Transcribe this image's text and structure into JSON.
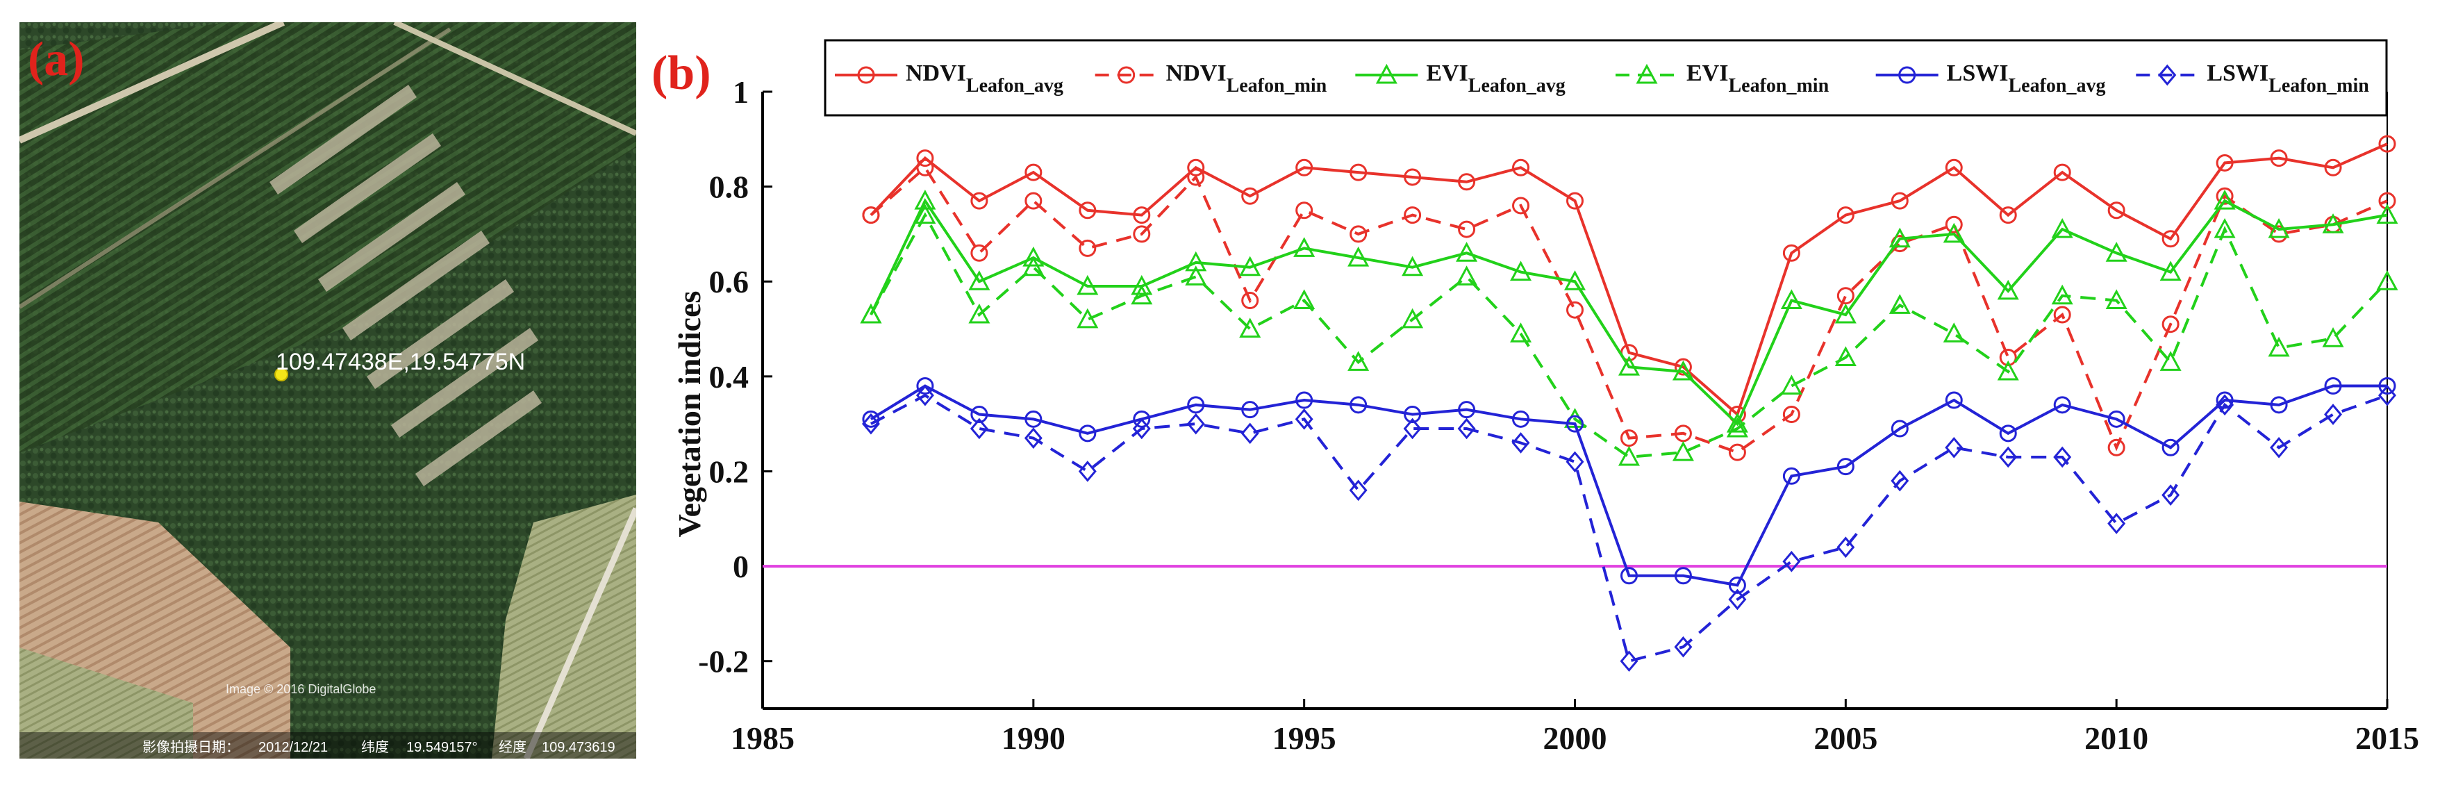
{
  "panel_a": {
    "label": "(a)",
    "coordinate_label": "109.47438E,19.54775N",
    "copyright": "Image © 2016 DigitalGlobe",
    "footer": {
      "date_label": "影像拍摄日期：",
      "date": "2012/12/21",
      "lat_label": "纬度",
      "lat_value": "19.549157°",
      "lon_label": "经度",
      "lon_value": "109.473619"
    }
  },
  "panel_b": {
    "label": "(b)"
  },
  "colors": {
    "ndvi": "#e8322b",
    "evi": "#22d11a",
    "lswi": "#2323d6",
    "zero_line": "#e040e0",
    "panel_label": "#e0231c"
  },
  "chart_data": {
    "type": "line",
    "title": "",
    "xlabel": "",
    "ylabel": "Vegetation indices",
    "xlim": [
      1985,
      2015
    ],
    "ylim": [
      -0.3,
      1.0
    ],
    "xticks": [
      "1985",
      "1990",
      "1995",
      "2000",
      "2005",
      "2010",
      "2015"
    ],
    "yticks": [
      "-0.2",
      "0",
      "0.2",
      "0.4",
      "0.6",
      "0.8",
      "1"
    ],
    "reference_line": {
      "y": 0
    },
    "x": [
      1987,
      1988,
      1989,
      1990,
      1991,
      1992,
      1993,
      1994,
      1995,
      1996,
      1997,
      1998,
      1999,
      2000,
      2001,
      2002,
      2003,
      2004,
      2005,
      2006,
      2007,
      2008,
      2009,
      2010,
      2011,
      2012,
      2013,
      2014,
      2015
    ],
    "legend_placement": "top",
    "series": [
      {
        "name": "NDVI_Leafon_avg",
        "label_main": "NDVI",
        "label_sub": "Leafon_avg",
        "color": "#e8322b",
        "dash": "solid",
        "marker": "circle",
        "values": [
          0.74,
          0.86,
          0.77,
          0.83,
          0.75,
          0.74,
          0.84,
          0.78,
          0.84,
          0.83,
          0.82,
          0.81,
          0.84,
          0.77,
          0.45,
          0.42,
          0.32,
          0.66,
          0.74,
          0.77,
          0.84,
          0.74,
          0.83,
          0.75,
          0.69,
          0.85,
          0.86,
          0.84,
          0.89
        ]
      },
      {
        "name": "NDVI_Leafon_min",
        "label_main": "NDVI",
        "label_sub": "Leafon_min",
        "color": "#e8322b",
        "dash": "dashed",
        "marker": "circle",
        "values": [
          0.74,
          0.84,
          0.66,
          0.77,
          0.67,
          0.7,
          0.82,
          0.56,
          0.75,
          0.7,
          0.74,
          0.71,
          0.76,
          0.54,
          0.27,
          0.28,
          0.24,
          0.32,
          0.57,
          0.68,
          0.72,
          0.44,
          0.53,
          0.25,
          0.51,
          0.78,
          0.7,
          0.72,
          0.77
        ]
      },
      {
        "name": "EVI_Leafon_avg",
        "label_main": "EVI",
        "label_sub": "Leafon_avg",
        "color": "#22d11a",
        "dash": "solid",
        "marker": "triangle",
        "values": [
          0.53,
          0.77,
          0.6,
          0.65,
          0.59,
          0.59,
          0.64,
          0.63,
          0.67,
          0.65,
          0.63,
          0.66,
          0.62,
          0.6,
          0.42,
          0.41,
          0.3,
          0.56,
          0.53,
          0.69,
          0.7,
          0.58,
          0.71,
          0.66,
          0.62,
          0.77,
          0.71,
          0.72,
          0.74
        ]
      },
      {
        "name": "EVI_Leafon_min",
        "label_main": "EVI",
        "label_sub": "Leafon_min",
        "color": "#22d11a",
        "dash": "dashed",
        "marker": "triangle",
        "values": [
          0.53,
          0.74,
          0.53,
          0.63,
          0.52,
          0.57,
          0.61,
          0.5,
          0.56,
          0.43,
          0.52,
          0.61,
          0.49,
          0.31,
          0.23,
          0.24,
          0.29,
          0.38,
          0.44,
          0.55,
          0.49,
          0.41,
          0.57,
          0.56,
          0.43,
          0.71,
          0.46,
          0.48,
          0.6
        ]
      },
      {
        "name": "LSWI_Leafon_avg",
        "label_main": "LSWI",
        "label_sub": "Leafon_avg",
        "color": "#2323d6",
        "dash": "solid",
        "marker": "circle",
        "values": [
          0.31,
          0.38,
          0.32,
          0.31,
          0.28,
          0.31,
          0.34,
          0.33,
          0.35,
          0.34,
          0.32,
          0.33,
          0.31,
          0.3,
          -0.02,
          -0.02,
          -0.04,
          0.19,
          0.21,
          0.29,
          0.35,
          0.28,
          0.34,
          0.31,
          0.25,
          0.35,
          0.34,
          0.38,
          0.38
        ]
      },
      {
        "name": "LSWI_Leafon_min",
        "label_main": "LSWI",
        "label_sub": "Leafon_min",
        "color": "#2323d6",
        "dash": "dashed",
        "marker": "diamond",
        "values": [
          0.3,
          0.36,
          0.29,
          0.27,
          0.2,
          0.29,
          0.3,
          0.28,
          0.31,
          0.16,
          0.29,
          0.29,
          0.26,
          0.22,
          -0.2,
          -0.17,
          -0.07,
          0.01,
          0.04,
          0.18,
          0.25,
          0.23,
          0.23,
          0.09,
          0.15,
          0.34,
          0.25,
          0.32,
          0.36
        ]
      }
    ]
  }
}
